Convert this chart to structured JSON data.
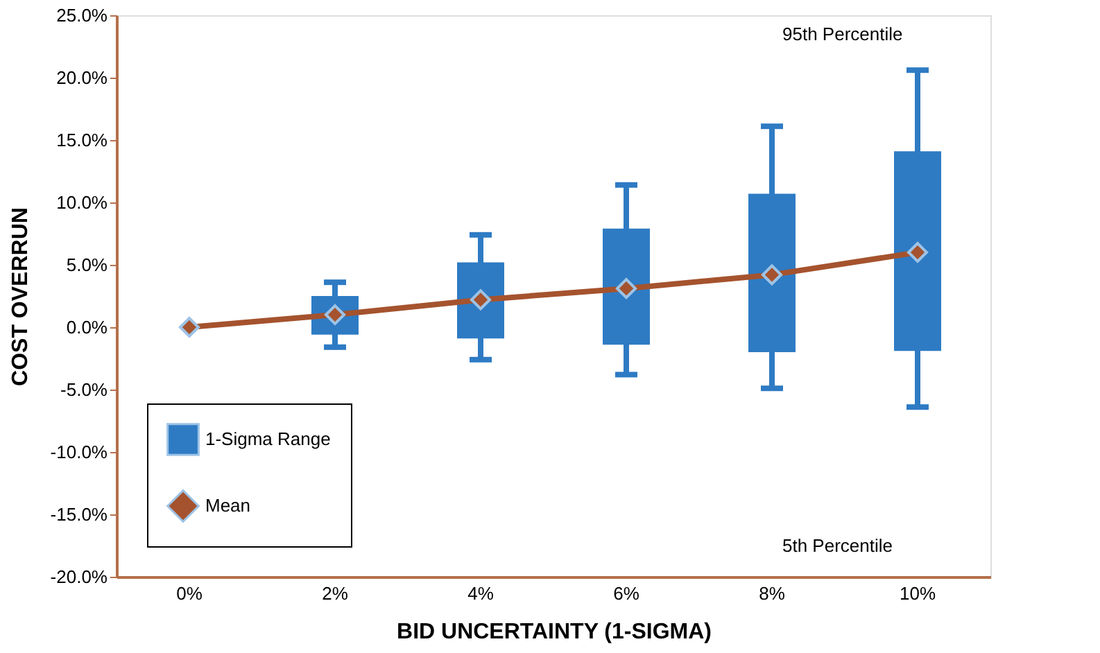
{
  "chart_data": {
    "type": "box",
    "xlabel": "BID UNCERTAINTY (1-SIGMA)",
    "ylabel": "COST OVERRUN",
    "categories": [
      "0%",
      "2%",
      "4%",
      "6%",
      "8%",
      "10%"
    ],
    "ylim": [
      -20,
      25
    ],
    "yticks": [
      {
        "value": -20,
        "label": "-20.0%"
      },
      {
        "value": -15,
        "label": "-15.0%"
      },
      {
        "value": -10,
        "label": "-10.0%"
      },
      {
        "value": -5,
        "label": "-5.0%"
      },
      {
        "value": 0,
        "label": "0.0%"
      },
      {
        "value": 5,
        "label": "5.0%"
      },
      {
        "value": 10,
        "label": "10.0%"
      },
      {
        "value": 15,
        "label": "15.0%"
      },
      {
        "value": 20,
        "label": "20.0%"
      },
      {
        "value": 25,
        "label": "25.0%"
      }
    ],
    "series": [
      {
        "name": "1-Sigma Range",
        "color": "#2e7bc4",
        "boxes": [
          null,
          {
            "low": -1.6,
            "q1": -0.6,
            "q3": 2.5,
            "high": 3.6
          },
          {
            "low": -2.6,
            "q1": -0.9,
            "q3": 5.2,
            "high": 7.4
          },
          {
            "low": -3.8,
            "q1": -1.4,
            "q3": 7.9,
            "high": 11.4
          },
          {
            "low": -4.9,
            "q1": -2.0,
            "q3": 10.7,
            "high": 16.1
          },
          {
            "low": -6.4,
            "q1": -1.9,
            "q3": 14.1,
            "high": 20.6
          }
        ]
      },
      {
        "name": "Mean",
        "type": "line",
        "color": "#a5532e",
        "marker": "diamond",
        "values": [
          0.0,
          1.0,
          2.2,
          3.1,
          4.2,
          6.0
        ]
      }
    ],
    "annotations": [
      "95th Percentile",
      "5th Percentile"
    ],
    "legend": "bottom left",
    "grid": false
  }
}
